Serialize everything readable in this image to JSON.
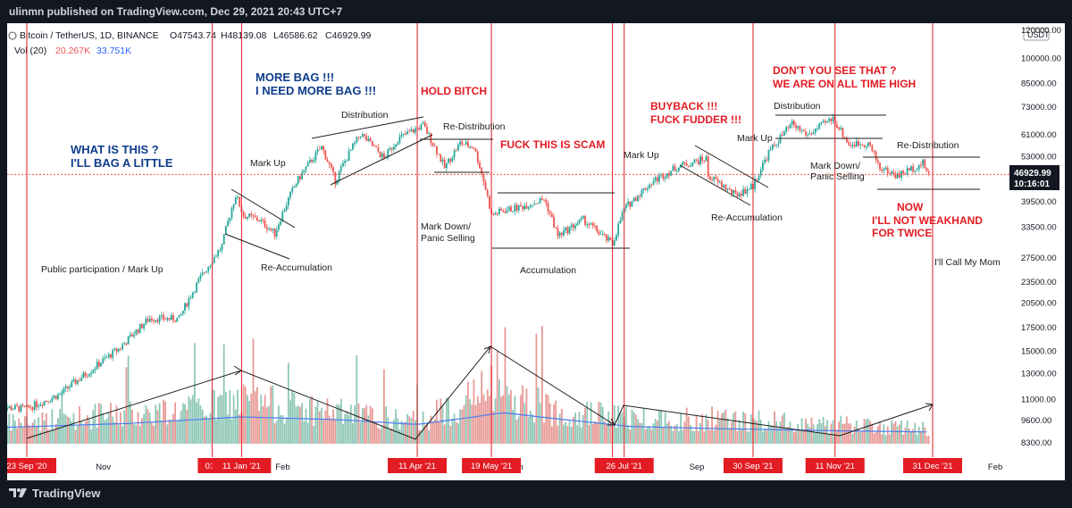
{
  "header": {
    "published": "ulinmn published on TradingView.com, Dec 29, 2021 20:43 UTC+7"
  },
  "footer": {
    "brand": "TradingView"
  },
  "symbol": {
    "name": "Bitcoin / TetherUS, 1D, BINANCE",
    "open": "O47543.74",
    "high": "H48139.08",
    "low": "L46586.62",
    "close": "C46929.99",
    "vol_label": "Vol (20)",
    "vol_value": "20.267K",
    "vol_ma": "33.751K",
    "currency": "USDT",
    "price_label": "46929.99",
    "countdown": "10:16:01"
  },
  "colors": {
    "up": "#26a69a",
    "down": "#ef5350",
    "marker": "#e31b23",
    "ma": "#2962ff",
    "annotation_blue": "#0d3c8c"
  },
  "chart_data": {
    "type": "candlestick",
    "title": "Bitcoin / TetherUS, 1D, BINANCE",
    "y_scale": "log",
    "ylim": [
      7800,
      125000
    ],
    "price_ticks": [
      "120000.00",
      "100000.00",
      "85000.00",
      "73000.00",
      "61000.00",
      "53000.00",
      "46929.99",
      "39500.00",
      "33500.00",
      "27500.00",
      "23500.00",
      "20500.00",
      "17500.00",
      "15000.00",
      "13000.00",
      "11000.00",
      "9600.00",
      "8300.00"
    ],
    "time_ticks": [
      {
        "label": "Nov",
        "date": "2020-11-01"
      },
      {
        "label": "Feb",
        "date": "2021-02-01"
      },
      {
        "label": "Jun",
        "date": "2021-06-01"
      },
      {
        "label": "Sep",
        "date": "2021-09-01"
      },
      {
        "label": "Feb",
        "date": "2022-02-01"
      }
    ],
    "markers": [
      {
        "label": "23 Sep '20",
        "date": "2020-09-23"
      },
      {
        "label": "01 .",
        "date": "2020-12-27"
      },
      {
        "label": "11 Jan '21",
        "date": "2021-01-11"
      },
      {
        "label": "11 Apr '21",
        "date": "2021-04-11"
      },
      {
        "label": "19 May '21",
        "date": "2021-05-19"
      },
      {
        "label": "2(",
        "date": "2021-07-20"
      },
      {
        "label": "26 Jul '21",
        "date": "2021-07-26"
      },
      {
        "label": "30 Sep '21",
        "date": "2021-09-30"
      },
      {
        "label": "11 Nov '21",
        "date": "2021-11-11"
      },
      {
        "label": "31 Dec '21",
        "date": "2021-12-31"
      }
    ],
    "price_path": [
      [
        "2020-09-08",
        10400
      ],
      [
        "2020-09-23",
        10300
      ],
      [
        "2020-10-10",
        11300
      ],
      [
        "2020-10-25",
        13100
      ],
      [
        "2020-11-10",
        15300
      ],
      [
        "2020-11-25",
        18500
      ],
      [
        "2020-12-10",
        18400
      ],
      [
        "2020-12-20",
        23500
      ],
      [
        "2021-01-01",
        29500
      ],
      [
        "2021-01-08",
        41000
      ],
      [
        "2021-01-12",
        36000
      ],
      [
        "2021-01-20",
        35000
      ],
      [
        "2021-01-28",
        32000
      ],
      [
        "2021-02-08",
        44500
      ],
      [
        "2021-02-21",
        56000
      ],
      [
        "2021-02-28",
        45000
      ],
      [
        "2021-03-13",
        61000
      ],
      [
        "2021-03-25",
        52000
      ],
      [
        "2021-04-01",
        59000
      ],
      [
        "2021-04-14",
        64500
      ],
      [
        "2021-04-25",
        49000
      ],
      [
        "2021-05-03",
        57500
      ],
      [
        "2021-05-10",
        56000
      ],
      [
        "2021-05-13",
        49500
      ],
      [
        "2021-05-19",
        36000
      ],
      [
        "2021-05-24",
        37000
      ],
      [
        "2021-06-03",
        38000
      ],
      [
        "2021-06-15",
        40000
      ],
      [
        "2021-06-22",
        31500
      ],
      [
        "2021-07-05",
        35000
      ],
      [
        "2021-07-20",
        29800
      ],
      [
        "2021-07-26",
        37500
      ],
      [
        "2021-08-10",
        45000
      ],
      [
        "2021-08-23",
        49500
      ],
      [
        "2021-09-06",
        52000
      ],
      [
        "2021-09-07",
        46500
      ],
      [
        "2021-09-21",
        41000
      ],
      [
        "2021-09-30",
        43500
      ],
      [
        "2021-10-08",
        54000
      ],
      [
        "2021-10-20",
        65000
      ],
      [
        "2021-10-28",
        60500
      ],
      [
        "2021-11-10",
        67500
      ],
      [
        "2021-11-18",
        57000
      ],
      [
        "2021-11-28",
        57500
      ],
      [
        "2021-12-04",
        49000
      ],
      [
        "2021-12-13",
        46500
      ],
      [
        "2021-12-26",
        50500
      ],
      [
        "2021-12-29",
        46930
      ]
    ],
    "volume_ylim": [
      0,
      200
    ],
    "volume_path": [
      [
        "2020-09-08",
        40
      ],
      [
        "2020-10-20",
        55
      ],
      [
        "2020-12-20",
        72
      ],
      [
        "2021-01-11",
        90
      ],
      [
        "2021-02-10",
        75
      ],
      [
        "2021-03-20",
        55
      ],
      [
        "2021-04-11",
        45
      ],
      [
        "2021-05-19",
        110
      ],
      [
        "2021-06-20",
        70
      ],
      [
        "2021-07-26",
        55
      ],
      [
        "2021-09-07",
        50
      ],
      [
        "2021-10-20",
        45
      ],
      [
        "2021-11-11",
        40
      ],
      [
        "2021-12-29",
        30
      ]
    ],
    "volume_ma_path": [
      [
        "2020-09-08",
        30
      ],
      [
        "2020-11-15",
        38
      ],
      [
        "2021-01-11",
        50
      ],
      [
        "2021-03-01",
        45
      ],
      [
        "2021-04-11",
        36
      ],
      [
        "2021-05-10",
        50
      ],
      [
        "2021-05-25",
        58
      ],
      [
        "2021-06-25",
        45
      ],
      [
        "2021-07-30",
        32
      ],
      [
        "2021-09-15",
        28
      ],
      [
        "2021-11-15",
        24
      ],
      [
        "2021-12-29",
        22
      ]
    ]
  },
  "annotations": {
    "what_is_this_1": "WHAT IS THIS ?",
    "what_is_this_2": "I'LL BAG A LITTLE",
    "public_participation": "Public participation / Mark Up",
    "more_bag_1": "MORE BAG !!!",
    "more_bag_2": "I NEED MORE BAG !!!",
    "mark_up_1": "Mark Up",
    "reaccumulation_1": "Re-Accumulation",
    "distribution_1": "Distribution",
    "hold": "HOLD BITCH",
    "redistribution_1": "Re-Distribution",
    "scam": "FUCK THIS IS SCAM",
    "markdown_1a": "Mark Down/",
    "markdown_1b": "Panic Selling",
    "accumulation": "Accumulation",
    "mark_up_2": "Mark Up",
    "buyback_1": "BUYBACK !!!",
    "buyback_2": "FUCK FUDDER !!!",
    "mark_up_3": "Mark Up",
    "reaccumulation_2": "Re-Accumulation",
    "ath_1": "DON'T YOU SEE THAT ?",
    "ath_2": "WE ARE ON ALL TIME HIGH",
    "distribution_2": "Distribution",
    "markdown_2a": "Mark Down/",
    "markdown_2b": "Panic Selling",
    "redistribution_2": "Re-Distribution",
    "now_1": "NOW",
    "now_2": "I'LL NOT WEAKHAND",
    "now_3": "FOR TWICE",
    "call_mom": "I'll Call My Mom"
  }
}
